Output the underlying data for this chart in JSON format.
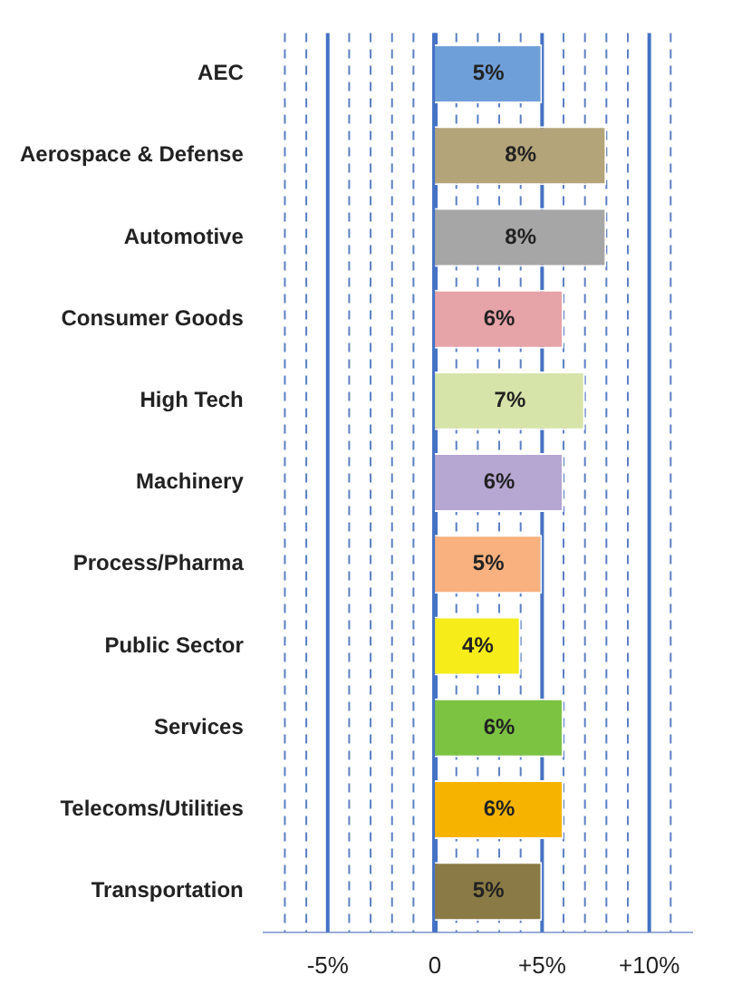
{
  "chart_data": {
    "type": "bar",
    "orientation": "horizontal",
    "categories": [
      "AEC",
      "Aerospace & Defense",
      "Automotive",
      "Consumer Goods",
      "High Tech",
      "Machinery",
      "Process/Pharma",
      "Public Sector",
      "Services",
      "Telecoms/Utilities",
      "Transportation"
    ],
    "values": [
      5,
      8,
      8,
      6,
      7,
      6,
      5,
      4,
      6,
      6,
      5
    ],
    "colors": [
      "#6f9fd8",
      "#b3a47a",
      "#a6a6a6",
      "#e6a3a8",
      "#d7e4a9",
      "#b6a6d2",
      "#f9b17f",
      "#f5ec1a",
      "#7cc342",
      "#f6b400",
      "#8a7a45"
    ],
    "value_labels": [
      "5%",
      "8%",
      "8%",
      "6%",
      "7%",
      "6%",
      "5%",
      "4%",
      "6%",
      "6%",
      "5%"
    ],
    "xlim": [
      -8,
      12
    ],
    "xticks": [
      {
        "value": -7,
        "label": null
      },
      {
        "value": -6,
        "label": null
      },
      {
        "value": -5,
        "label": "-5%"
      },
      {
        "value": -4,
        "label": null
      },
      {
        "value": -3,
        "label": null
      },
      {
        "value": -2,
        "label": null
      },
      {
        "value": -1,
        "label": null
      },
      {
        "value": 0,
        "label": "0"
      },
      {
        "value": 1,
        "label": null
      },
      {
        "value": 2,
        "label": null
      },
      {
        "value": 3,
        "label": null
      },
      {
        "value": 4,
        "label": null
      },
      {
        "value": 5,
        "label": "+5%"
      },
      {
        "value": 6,
        "label": null
      },
      {
        "value": 7,
        "label": null
      },
      {
        "value": 8,
        "label": null
      },
      {
        "value": 9,
        "label": null
      },
      {
        "value": 10,
        "label": "+10%"
      },
      {
        "value": 11,
        "label": null
      }
    ],
    "ref_lines": [
      {
        "axis": "x",
        "value": 0,
        "color": "#4472c4"
      }
    ],
    "grid": "x",
    "legend": false
  }
}
